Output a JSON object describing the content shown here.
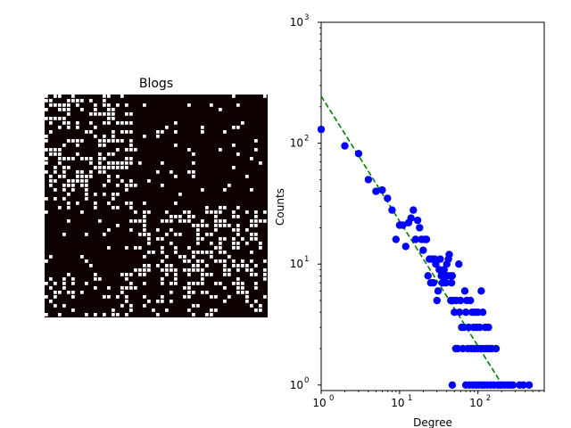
{
  "chart_data": [
    {
      "type": "heatmap",
      "title": "Blogs",
      "matrix_size": 50,
      "colors": {
        "empty": "#0d0000",
        "filled": "#ffffff"
      },
      "block_density": {
        "row_groups": [
          26,
          14,
          10
        ],
        "col_groups": [
          20,
          30
        ],
        "density": [
          [
            0.42,
            0.06
          ],
          [
            0.06,
            0.42
          ],
          [
            0.28,
            0.28
          ]
        ]
      },
      "seed": 7
    },
    {
      "type": "scatter",
      "xlabel": "Degree",
      "ylabel": "Counts",
      "xscale": "log",
      "yscale": "log",
      "xlim": [
        1,
        700
      ],
      "ylim": [
        0.9,
        1000
      ],
      "marker_color": "#0000ff",
      "fit_line_color": "#008000",
      "x_ticks": [
        {
          "value": 1,
          "base": "10",
          "exp": "0"
        },
        {
          "value": 10,
          "base": "10",
          "exp": "1"
        },
        {
          "value": 100,
          "base": "10",
          "exp": "2"
        }
      ],
      "y_ticks": [
        {
          "value": 1,
          "base": "10",
          "exp": "0"
        },
        {
          "value": 10,
          "base": "10",
          "exp": "1"
        },
        {
          "value": 100,
          "base": "10",
          "exp": "2"
        },
        {
          "value": 1000,
          "base": "10",
          "exp": "3"
        }
      ],
      "fit_line": {
        "x": [
          1,
          205
        ],
        "y": [
          245,
          1
        ]
      },
      "points": [
        [
          1,
          130
        ],
        [
          2,
          95
        ],
        [
          3,
          82
        ],
        [
          4,
          50
        ],
        [
          5,
          40
        ],
        [
          6,
          41
        ],
        [
          7,
          35
        ],
        [
          8,
          28
        ],
        [
          9,
          16
        ],
        [
          10,
          21
        ],
        [
          11,
          21
        ],
        [
          12,
          14
        ],
        [
          13,
          22
        ],
        [
          14,
          24
        ],
        [
          15,
          28
        ],
        [
          16,
          16
        ],
        [
          17,
          23
        ],
        [
          18,
          20
        ],
        [
          19,
          16
        ],
        [
          20,
          13
        ],
        [
          21,
          16
        ],
        [
          22,
          16
        ],
        [
          23,
          8
        ],
        [
          24,
          11
        ],
        [
          25,
          7
        ],
        [
          26,
          11
        ],
        [
          27,
          7
        ],
        [
          28,
          11
        ],
        [
          29,
          10
        ],
        [
          30,
          5
        ],
        [
          31,
          6
        ],
        [
          32,
          9
        ],
        [
          33,
          11
        ],
        [
          34,
          8
        ],
        [
          35,
          7
        ],
        [
          36,
          7
        ],
        [
          37,
          9
        ],
        [
          38,
          8
        ],
        [
          39,
          7
        ],
        [
          40,
          10
        ],
        [
          41,
          8
        ],
        [
          42,
          11
        ],
        [
          43,
          12
        ],
        [
          44,
          8
        ],
        [
          45,
          5
        ],
        [
          46,
          7
        ],
        [
          47,
          8
        ],
        [
          48,
          5
        ],
        [
          50,
          4
        ],
        [
          52,
          2
        ],
        [
          47,
          1
        ],
        [
          53,
          5
        ],
        [
          55,
          2
        ],
        [
          57,
          10
        ],
        [
          58,
          4
        ],
        [
          60,
          5
        ],
        [
          62,
          3
        ],
        [
          64,
          2
        ],
        [
          66,
          3
        ],
        [
          68,
          6
        ],
        [
          70,
          4
        ],
        [
          70,
          1
        ],
        [
          72,
          5
        ],
        [
          74,
          2
        ],
        [
          76,
          3
        ],
        [
          78,
          1
        ],
        [
          80,
          5
        ],
        [
          82,
          2
        ],
        [
          84,
          4
        ],
        [
          86,
          1
        ],
        [
          88,
          3
        ],
        [
          90,
          2
        ],
        [
          92,
          4
        ],
        [
          94,
          1
        ],
        [
          96,
          3
        ],
        [
          98,
          2
        ],
        [
          100,
          4
        ],
        [
          102,
          1
        ],
        [
          105,
          3
        ],
        [
          108,
          2
        ],
        [
          110,
          6
        ],
        [
          112,
          1
        ],
        [
          115,
          4
        ],
        [
          118,
          2
        ],
        [
          120,
          1
        ],
        [
          124,
          3
        ],
        [
          128,
          2
        ],
        [
          132,
          1
        ],
        [
          136,
          3
        ],
        [
          140,
          2
        ],
        [
          145,
          1
        ],
        [
          150,
          2
        ],
        [
          160,
          1
        ],
        [
          170,
          2
        ],
        [
          180,
          1
        ],
        [
          190,
          1
        ],
        [
          200,
          1
        ],
        [
          220,
          1
        ],
        [
          240,
          1
        ],
        [
          260,
          1
        ],
        [
          280,
          1
        ],
        [
          340,
          1
        ],
        [
          380,
          1
        ],
        [
          450,
          1
        ]
      ]
    }
  ]
}
